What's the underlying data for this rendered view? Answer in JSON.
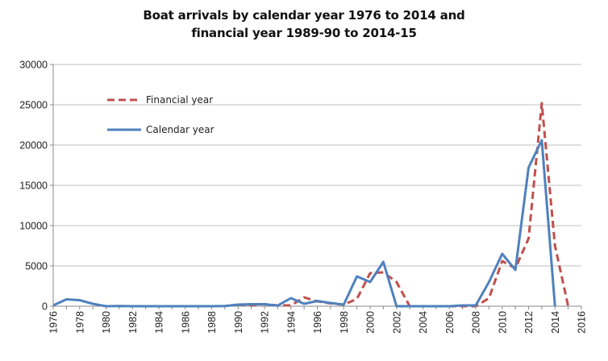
{
  "chart_data": {
    "type": "line",
    "title_line1": "Boat arrivals by calendar year 1976  to 2014  and",
    "title_line2": "financial year  1989-90  to 2014-15",
    "xlabel": "",
    "ylabel": "",
    "xlim": [
      1976,
      2016
    ],
    "ylim": [
      0,
      30000
    ],
    "x_ticks": [
      1976,
      1978,
      1980,
      1982,
      1984,
      1986,
      1988,
      1990,
      1992,
      1994,
      1996,
      1998,
      2000,
      2002,
      2004,
      2006,
      2008,
      2010,
      2012,
      2014,
      2016
    ],
    "y_ticks": [
      0,
      5000,
      10000,
      15000,
      20000,
      25000,
      30000
    ],
    "x_tick_labels": [
      "1976",
      "1978",
      "1980",
      "1982",
      "1984",
      "1986",
      "1988",
      "1990",
      "1992",
      "1994",
      "1996",
      "1998",
      "2000",
      "2002",
      "2004",
      "2006",
      "2008",
      "2010",
      "2012",
      "2014",
      "2016"
    ],
    "y_tick_labels": [
      "0",
      "5000",
      "10000",
      "15000",
      "20000",
      "25000",
      "30000"
    ],
    "grid": "horizontal",
    "legend_position": "top-left",
    "series": [
      {
        "name": "Financial year",
        "color": "#c0504d",
        "style": "dashed",
        "x": [
          1990,
          1991,
          1992,
          1993,
          1994,
          1995,
          1996,
          1997,
          1998,
          1999,
          2000,
          2001,
          2002,
          2003,
          2004,
          2005,
          2006,
          2007,
          2008,
          2009,
          2010,
          2011,
          2012,
          2013,
          2014,
          2015
        ],
        "y": [
          200,
          150,
          250,
          100,
          100,
          1100,
          600,
          350,
          200,
          900,
          4100,
          4200,
          3000,
          0,
          0,
          0,
          0,
          0,
          0,
          1000,
          5600,
          4700,
          8400,
          25200,
          7500,
          0
        ]
      },
      {
        "name": "Calendar year",
        "color": "#4f81bd",
        "style": "solid",
        "x": [
          1976,
          1977,
          1978,
          1979,
          1980,
          1981,
          1982,
          1983,
          1984,
          1985,
          1986,
          1987,
          1988,
          1989,
          1990,
          1991,
          1992,
          1993,
          1994,
          1995,
          1996,
          1997,
          1998,
          1999,
          2000,
          2001,
          2002,
          2003,
          2004,
          2005,
          2006,
          2007,
          2008,
          2009,
          2010,
          2011,
          2012,
          2013,
          2014
        ],
        "y": [
          100,
          850,
          750,
          300,
          0,
          30,
          0,
          0,
          0,
          0,
          0,
          0,
          0,
          30,
          200,
          250,
          250,
          80,
          1000,
          300,
          650,
          400,
          200,
          3700,
          3000,
          5500,
          0,
          0,
          0,
          0,
          0,
          100,
          100,
          3000,
          6500,
          4500,
          17200,
          20600,
          0
        ]
      }
    ]
  }
}
